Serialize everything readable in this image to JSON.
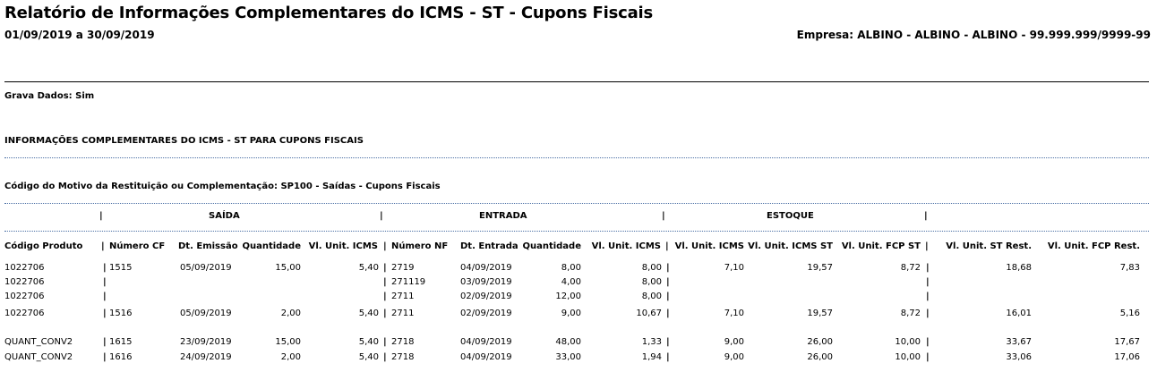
{
  "report": {
    "title": "Relatório de Informações Complementares do ICMS - ST - Cupons Fiscais",
    "period": "01/09/2019 a 30/09/2019",
    "company": "Empresa: ALBINO - ALBINO - ALBINO -  99.999.999/9999-99"
  },
  "grava_dados": "Grava Dados: Sim",
  "section_title": "INFORMAÇÕES COMPLEMENTARES DO ICMS - ST PARA CUPONS FISCAIS",
  "motivo": "Código do Motivo da Restituição ou Complementação: SP100 - Saídas - Cupons Fiscais",
  "groups": {
    "saida": "SAÍDA",
    "entrada": "ENTRADA",
    "estoque": "ESTOQUE"
  },
  "columns": {
    "codigo": "Código Produto",
    "numero_cf": "Número CF",
    "dt_emissao": "Dt. Emissão",
    "quantidade_saida": "Quantidade",
    "vl_unit_icms_saida": "Vl. Unit. ICMS",
    "numero_nf": "Número NF",
    "dt_entrada": "Dt. Entrada",
    "quantidade_entrada": "Quantidade",
    "vl_unit_icms_entrada": "Vl. Unit. ICMS",
    "vl_unit_icms_estoque": "Vl. Unit. ICMS",
    "vl_unit_icms_st": "Vl. Unit. ICMS ST",
    "vl_unit_fcp_st": "Vl. Unit. FCP ST",
    "vl_unit_st_rest": "Vl. Unit. ST Rest.",
    "vl_unit_fcp_rest": "Vl. Unit. FCP Rest."
  },
  "rows": [
    {
      "codigo": "1022706",
      "numero_cf": "1515",
      "dt_emissao": "05/09/2019",
      "qtd_s": "15,00",
      "icms_s": "5,40",
      "numero_nf": "2719",
      "dt_entrada": "04/09/2019",
      "qtd_e": "8,00",
      "icms_e": "8,00",
      "icms_est": "7,10",
      "icms_st": "19,57",
      "fcp_st": "8,72",
      "st_rest": "18,68",
      "fcp_rest": "7,83"
    },
    {
      "codigo": "1022706",
      "numero_cf": "",
      "dt_emissao": "",
      "qtd_s": "",
      "icms_s": "",
      "numero_nf": "271119",
      "dt_entrada": "03/09/2019",
      "qtd_e": "4,00",
      "icms_e": "8,00",
      "icms_est": "",
      "icms_st": "",
      "fcp_st": "",
      "st_rest": "",
      "fcp_rest": ""
    },
    {
      "codigo": "1022706",
      "numero_cf": "",
      "dt_emissao": "",
      "qtd_s": "",
      "icms_s": "",
      "numero_nf": "2711",
      "dt_entrada": "02/09/2019",
      "qtd_e": "12,00",
      "icms_e": "8,00",
      "icms_est": "",
      "icms_st": "",
      "fcp_st": "",
      "st_rest": "",
      "fcp_rest": ""
    },
    {
      "codigo": "1022706",
      "numero_cf": "1516",
      "dt_emissao": "05/09/2019",
      "qtd_s": "2,00",
      "icms_s": "5,40",
      "numero_nf": "2711",
      "dt_entrada": "02/09/2019",
      "qtd_e": "9,00",
      "icms_e": "10,67",
      "icms_est": "7,10",
      "icms_st": "19,57",
      "fcp_st": "8,72",
      "st_rest": "16,01",
      "fcp_rest": "5,16"
    },
    {
      "codigo": "QUANT_CONV2",
      "numero_cf": "1615",
      "dt_emissao": "23/09/2019",
      "qtd_s": "15,00",
      "icms_s": "5,40",
      "numero_nf": "2718",
      "dt_entrada": "04/09/2019",
      "qtd_e": "48,00",
      "icms_e": "1,33",
      "icms_est": "9,00",
      "icms_st": "26,00",
      "fcp_st": "10,00",
      "st_rest": "33,67",
      "fcp_rest": "17,67"
    },
    {
      "codigo": "QUANT_CONV2",
      "numero_cf": "1616",
      "dt_emissao": "24/09/2019",
      "qtd_s": "2,00",
      "icms_s": "5,40",
      "numero_nf": "2718",
      "dt_entrada": "04/09/2019",
      "qtd_e": "33,00",
      "icms_e": "1,94",
      "icms_est": "9,00",
      "icms_st": "26,00",
      "fcp_st": "10,00",
      "st_rest": "33,06",
      "fcp_rest": "17,06"
    }
  ],
  "separator": "|"
}
